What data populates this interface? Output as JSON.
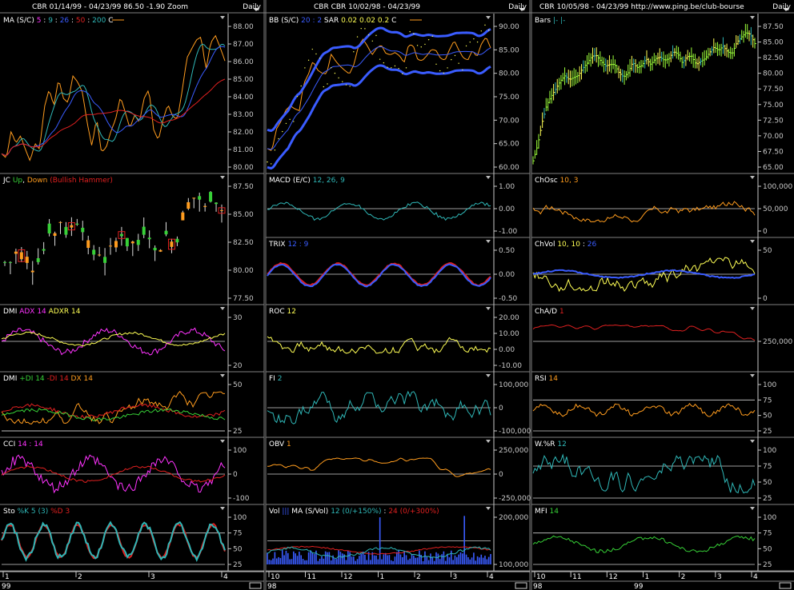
{
  "colors": {
    "bg": "#000000",
    "sep": "#808080",
    "axis": "#c8c8c8",
    "white": "#ffffff",
    "orange": "#ff9c1e",
    "cyan": "#2fb7b7",
    "blue": "#3a5cff",
    "red": "#e02020",
    "yellow": "#ffff55",
    "magenta": "#ff33ff",
    "green": "#37d137",
    "lime": "#9cff3a"
  },
  "columns": [
    {
      "header": "CBR  01/14/99 - 04/23/99   86.50  -1.90  Zoom",
      "period": "Daily",
      "xaxis": {
        "ticks": [
          "1",
          "2",
          "3",
          "4"
        ],
        "year": "99"
      }
    },
    {
      "header": "CBR  CBR  10/02/98 - 04/23/99",
      "period": "Daily",
      "xaxis": {
        "ticks": [
          "10",
          "11",
          "12",
          "1",
          "2",
          "3",
          "4"
        ],
        "year": "98"
      }
    },
    {
      "header": "CBR  10/05/98 - 04/23/99   http://www.ping.be/club-bourse",
      "period": "Daily",
      "xaxis": {
        "ticks": [
          "10",
          "11",
          "12",
          "1",
          "2",
          "3",
          "4"
        ],
        "year_left": "98",
        "year_mid": "99"
      }
    }
  ],
  "panels": [
    {
      "id": "ma",
      "col": 0,
      "label": [
        {
          "t": "MA (S/C) ",
          "c": "white"
        },
        {
          "t": "5",
          "c": "magenta"
        },
        {
          "t": " : ",
          "c": "white"
        },
        {
          "t": "9",
          "c": "cyan"
        },
        {
          "t": " : ",
          "c": "white"
        },
        {
          "t": "26",
          "c": "blue"
        },
        {
          "t": " : ",
          "c": "white"
        },
        {
          "t": "50",
          "c": "red"
        },
        {
          "t": " : ",
          "c": "white"
        },
        {
          "t": "200",
          "c": "cyan"
        },
        {
          "t": "    C ",
          "c": "white"
        }
      ],
      "ticks": [
        "88.00",
        "87.00",
        "86.00",
        "85.00",
        "84.00",
        "83.00",
        "82.00",
        "81.00",
        "80.00"
      ]
    },
    {
      "id": "jc",
      "col": 0,
      "label": [
        {
          "t": "JC ",
          "c": "white"
        },
        {
          "t": "Up",
          "c": "green"
        },
        {
          "t": ", ",
          "c": "white"
        },
        {
          "t": "Down",
          "c": "orange"
        },
        {
          "t": "  (Bullish Hammer)",
          "c": "red"
        }
      ],
      "ticks": [
        "87.50",
        "85.00",
        "82.50",
        "80.00",
        "77.50"
      ]
    },
    {
      "id": "dmi1",
      "col": 0,
      "label": [
        {
          "t": "DMI  ",
          "c": "white"
        },
        {
          "t": "ADX 14",
          "c": "magenta"
        },
        {
          "t": "  ADXR 14",
          "c": "yellow"
        }
      ],
      "ticks": [
        "30",
        "20"
      ]
    },
    {
      "id": "dmi2",
      "col": 0,
      "label": [
        {
          "t": "DMI  ",
          "c": "white"
        },
        {
          "t": "+DI 14",
          "c": "green"
        },
        {
          "t": "  -DI 14",
          "c": "red"
        },
        {
          "t": "  DX 14",
          "c": "orange"
        }
      ],
      "ticks": [
        "50",
        "25"
      ]
    },
    {
      "id": "cci",
      "col": 0,
      "label": [
        {
          "t": "CCI  ",
          "c": "white"
        },
        {
          "t": "14 : 14",
          "c": "magenta"
        }
      ],
      "ticks": [
        "100",
        "0",
        "-100"
      ]
    },
    {
      "id": "sto",
      "col": 0,
      "label": [
        {
          "t": "Sto  ",
          "c": "white"
        },
        {
          "t": "%K 5 (3)",
          "c": "cyan"
        },
        {
          "t": "  %D 3",
          "c": "red"
        }
      ],
      "ticks": [
        "100",
        "75",
        "50",
        "25"
      ]
    },
    {
      "id": "bb",
      "col": 1,
      "label": [
        {
          "t": "BB (S/C) ",
          "c": "white"
        },
        {
          "t": "20 : 2",
          "c": "blue"
        },
        {
          "t": "   SAR  ",
          "c": "white"
        },
        {
          "t": "0.02  0.02  0.2",
          "c": "yellow"
        },
        {
          "t": "    C ",
          "c": "white"
        }
      ],
      "ticks": [
        "90.00",
        "85.00",
        "80.00",
        "75.00",
        "70.00",
        "65.00",
        "60.00"
      ]
    },
    {
      "id": "macd",
      "col": 1,
      "label": [
        {
          "t": "MACD (E/C)  ",
          "c": "white"
        },
        {
          "t": "12, 26, 9",
          "c": "cyan"
        }
      ],
      "ticks": [
        "1.00",
        "0.00",
        "-1.00"
      ]
    },
    {
      "id": "trix",
      "col": 1,
      "label": [
        {
          "t": "TRIX  ",
          "c": "white"
        },
        {
          "t": "12 : 9",
          "c": "blue"
        }
      ],
      "ticks": [
        "0.50",
        "0.00",
        "-0.50"
      ]
    },
    {
      "id": "roc",
      "col": 1,
      "label": [
        {
          "t": "ROC  ",
          "c": "white"
        },
        {
          "t": "12",
          "c": "yellow"
        }
      ],
      "ticks": [
        "20.00",
        "10.00",
        "0.00",
        "-10.00"
      ]
    },
    {
      "id": "fi",
      "col": 1,
      "label": [
        {
          "t": "FI  ",
          "c": "white"
        },
        {
          "t": "2",
          "c": "cyan"
        }
      ],
      "ticks": [
        "100,000",
        "0",
        "-100,000"
      ]
    },
    {
      "id": "obv",
      "col": 1,
      "label": [
        {
          "t": "OBV  ",
          "c": "white"
        },
        {
          "t": "1",
          "c": "orange"
        }
      ],
      "ticks": [
        "250,000",
        "0",
        "-250,000"
      ]
    },
    {
      "id": "vol",
      "col": 1,
      "label": [
        {
          "t": "Vol ",
          "c": "white"
        },
        {
          "t": "|||",
          "c": "blue"
        },
        {
          "t": "  MA  (S/Vol)  ",
          "c": "white"
        },
        {
          "t": "12 (0/+150%)",
          "c": "cyan"
        },
        {
          "t": " : ",
          "c": "white"
        },
        {
          "t": "24 (0/+300%)",
          "c": "red"
        }
      ],
      "ticks": [
        "200,000",
        "100,000"
      ]
    },
    {
      "id": "bars",
      "col": 2,
      "label": [
        {
          "t": "Bars  ",
          "c": "white"
        },
        {
          "t": "|-  |-",
          "c": "cyan"
        }
      ],
      "ticks": [
        "87.50",
        "85.00",
        "82.50",
        "80.00",
        "77.50",
        "75.00",
        "72.50",
        "70.00",
        "67.50",
        "65.00"
      ]
    },
    {
      "id": "chosc",
      "col": 2,
      "label": [
        {
          "t": "ChOsc  ",
          "c": "white"
        },
        {
          "t": "10, 3",
          "c": "orange"
        }
      ],
      "ticks": [
        "100,000",
        "50,000",
        "0"
      ]
    },
    {
      "id": "chvol",
      "col": 2,
      "label": [
        {
          "t": "ChVol  ",
          "c": "white"
        },
        {
          "t": "10, 10",
          "c": "yellow"
        },
        {
          "t": " : ",
          "c": "white"
        },
        {
          "t": "26",
          "c": "blue"
        }
      ],
      "ticks": [
        "50",
        "0"
      ]
    },
    {
      "id": "chad",
      "col": 2,
      "label": [
        {
          "t": "ChA/D  ",
          "c": "white"
        },
        {
          "t": "1",
          "c": "red"
        }
      ],
      "ticks": [
        "250,000"
      ]
    },
    {
      "id": "rsi",
      "col": 2,
      "label": [
        {
          "t": "RSI  ",
          "c": "white"
        },
        {
          "t": "14",
          "c": "orange"
        }
      ],
      "ticks": [
        "100",
        "75",
        "50",
        "25"
      ]
    },
    {
      "id": "wr",
      "col": 2,
      "label": [
        {
          "t": "W.%R  ",
          "c": "white"
        },
        {
          "t": "12",
          "c": "cyan"
        }
      ],
      "ticks": [
        "100",
        "75",
        "50",
        "25"
      ]
    },
    {
      "id": "mfi",
      "col": 2,
      "label": [
        {
          "t": "MFI  ",
          "c": "white"
        },
        {
          "t": "14",
          "c": "green"
        }
      ],
      "ticks": [
        "100",
        "75",
        "50",
        "25"
      ]
    }
  ],
  "chart_data": {
    "type": "line",
    "ylim": {
      "ma": [
        79.3,
        88.7
      ],
      "bb": [
        59.5,
        91
      ],
      "bars": [
        62.5,
        89.5
      ]
    },
    "series": [
      {
        "panel": "ma",
        "values": [
          80.3,
          80.0,
          81.8,
          81.0,
          81.5,
          80.6,
          79.8,
          81.0,
          80.6,
          83.4,
          84.6,
          83.5,
          85.3,
          84.0,
          83.7,
          85.5,
          85.1,
          84.4,
          82.4,
          80.8,
          82.7,
          80.4,
          80.7,
          81.8,
          82.6,
          84.1,
          83.1,
          82.0,
          82.9,
          82.4,
          84.0,
          84.6,
          81.9,
          81.2,
          82.6,
          83.6,
          82.8,
          82.6,
          84.5,
          86.7,
          87.3,
          87.9,
          88.1,
          85.9,
          87.7,
          88.2,
          87.4,
          86.5
        ]
      },
      {
        "panel": "bb",
        "values": [
          64,
          63.5,
          68.4,
          70.1,
          72.5,
          73.6,
          72.9,
          72.5,
          78.6,
          80.6,
          83.6,
          81.6,
          80.9,
          80.7,
          85.1,
          83.6,
          82.4,
          81.5,
          80.7,
          82.8,
          87.0,
          88.5,
          86.9,
          85.0,
          86.5,
          87.2,
          85.3,
          85.0,
          85.5,
          84.8,
          83.2,
          87.2,
          87.1,
          83.9,
          83.7,
          84.8,
          86.2,
          86.0,
          84.2,
          83.8,
          86.2,
          88.2,
          86.1,
          84.3,
          83.8,
          86.0,
          84.5,
          87.5,
          89.0,
          86.5
        ]
      },
      {
        "panel": "bars",
        "values": [
          64,
          67,
          71.4,
          74.7,
          76.4,
          77.8,
          79.3,
          80.3,
          79.6,
          80.0,
          80.4,
          81.8,
          82.8,
          84.1,
          84.2,
          83.1,
          82.2,
          82.5,
          82.5,
          80.9,
          80.1,
          80.9,
          82.9,
          81.9,
          82.3,
          83.6,
          82.5,
          83.6,
          83.9,
          83.3,
          83.6,
          85.0,
          84.5,
          82.8,
          84.0,
          84.1,
          82.5,
          83.1,
          83.6,
          84.8,
          85.8,
          85.2,
          86.0,
          84.9,
          84.6,
          86.7,
          87.7,
          88.6,
          88.3,
          86.5
        ]
      }
    ]
  }
}
